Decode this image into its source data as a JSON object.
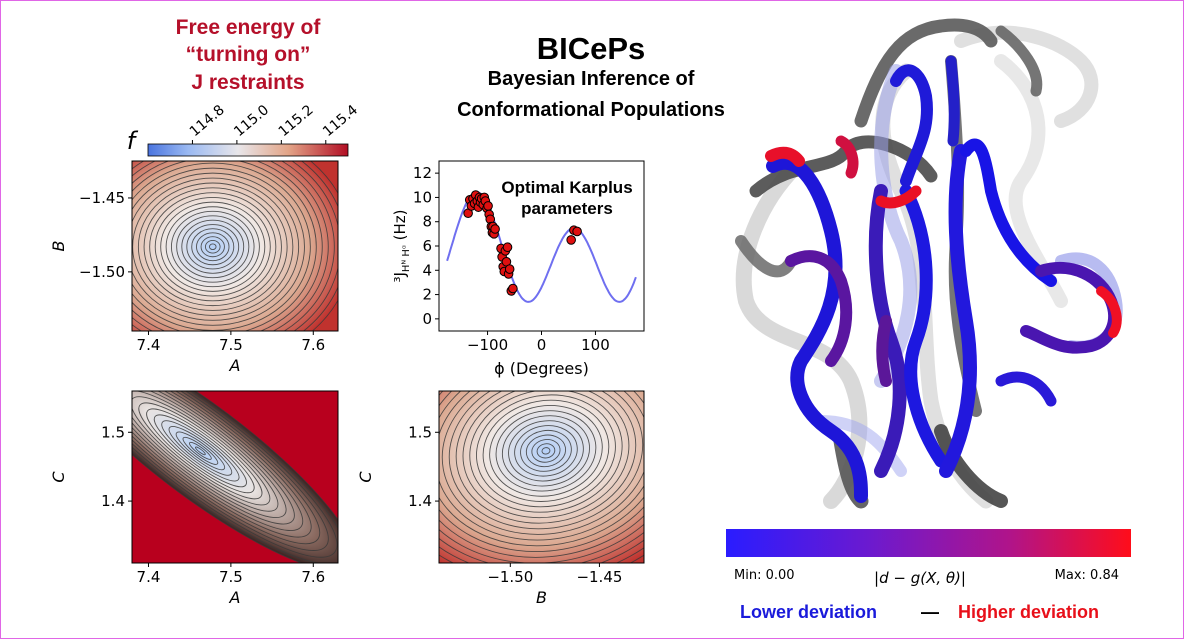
{
  "header": {
    "title": "BICePs",
    "subtitle_line1": "Bayesian Inference of",
    "subtitle_line2": "Conformational Populations"
  },
  "free_energy_label": {
    "line1": "Free energy of",
    "line2": "“turning on”",
    "line3": "J restraints"
  },
  "colorbar_f": {
    "symbol": "f",
    "ticks": [
      "114.8",
      "115.0",
      "115.2",
      "115.4"
    ],
    "tick_values": [
      114.8,
      115.0,
      115.2,
      115.4
    ],
    "range": [
      114.6,
      115.5
    ]
  },
  "karplus_annotation": {
    "line1": "Optimal Karplus",
    "line2": "parameters"
  },
  "deviation_colorbar": {
    "min_label": "Min: 0.00",
    "max_label": "Max: 0.84",
    "formula": "|d − g(X, θ)|",
    "colors": [
      "#2a1cff",
      "#6b1ad0",
      "#b0148a",
      "#ff0d1a"
    ]
  },
  "legend": {
    "lower": "Lower deviation",
    "dash": "—",
    "higher": "Higher deviation",
    "lower_color": "#1a1adb",
    "higher_color": "#e8101a"
  },
  "title_color": "#b5102a",
  "chart_data": [
    {
      "id": "contour-AB",
      "type": "heatmap",
      "xlabel": "A",
      "ylabel": "B",
      "xlim": [
        7.38,
        7.63
      ],
      "ylim": [
        -1.54,
        -1.425
      ],
      "xticks": [
        "7.4",
        "7.5",
        "7.6"
      ],
      "xtick_values": [
        7.4,
        7.5,
        7.6
      ],
      "yticks": [
        "−1.45",
        "−1.50"
      ],
      "ytick_values": [
        -1.45,
        -1.5
      ],
      "minimum": [
        7.478,
        -1.483
      ],
      "colormap": [
        "#b5d0f7",
        "#f3ebe6",
        "#dba890",
        "#c0322e"
      ]
    },
    {
      "id": "contour-AC",
      "type": "heatmap",
      "xlabel": "A",
      "ylabel": "C",
      "xlim": [
        7.38,
        7.63
      ],
      "ylim": [
        1.31,
        1.56
      ],
      "xticks": [
        "7.4",
        "7.5",
        "7.6"
      ],
      "xtick_values": [
        7.4,
        7.5,
        7.6
      ],
      "yticks": [
        "1.5",
        "1.4"
      ],
      "ytick_values": [
        1.5,
        1.4
      ],
      "minimum": [
        7.463,
        1.473
      ],
      "colormap": [
        "#b5d0f7",
        "#e9e4e2",
        "#5a3530",
        "#b8001e"
      ]
    },
    {
      "id": "contour-BC",
      "type": "heatmap",
      "xlabel": "B",
      "ylabel": "C",
      "xlim": [
        -1.54,
        -1.425
      ],
      "ylim": [
        1.31,
        1.56
      ],
      "xticks": [
        "−1.50",
        "−1.45"
      ],
      "xtick_values": [
        -1.5,
        -1.45
      ],
      "yticks": [
        "1.5",
        "1.4"
      ],
      "ytick_values": [
        1.5,
        1.4
      ],
      "minimum": [
        -1.48,
        1.473
      ],
      "colormap": [
        "#b5d0f7",
        "#f3ebe6",
        "#dba890",
        "#c0322e"
      ]
    },
    {
      "id": "karplus",
      "type": "scatter",
      "xlabel": "ϕ (Degrees)",
      "ylabel": "³J",
      "ylabel_sub": "Hᴺ Hᵅ",
      "ylabel_unit": "(Hz)",
      "xlim": [
        -190,
        190
      ],
      "ylim": [
        -1,
        13
      ],
      "xticks": [
        "−100",
        "0",
        "100"
      ],
      "xtick_values": [
        -100,
        0,
        100
      ],
      "yticks": [
        "0",
        "2",
        "4",
        "6",
        "8",
        "10",
        "12"
      ],
      "ytick_values": [
        0,
        2,
        4,
        6,
        8,
        10,
        12
      ],
      "karplus": {
        "A": 7.48,
        "B": -1.48,
        "C": 1.47,
        "offset_deg": -60
      },
      "curve_range": [
        -175,
        175
      ],
      "points": [
        [
          -136,
          8.7
        ],
        [
          -133,
          9.8
        ],
        [
          -130,
          9.3
        ],
        [
          -127,
          9.9
        ],
        [
          -124,
          9.5
        ],
        [
          -122,
          10.2
        ],
        [
          -119,
          9.7
        ],
        [
          -117,
          9.2
        ],
        [
          -115,
          10.0
        ],
        [
          -113,
          9.6
        ],
        [
          -111,
          9.9
        ],
        [
          -108,
          9.4
        ],
        [
          -106,
          10.0
        ],
        [
          -104,
          9.7
        ],
        [
          -101,
          9.1
        ],
        [
          -99,
          9.3
        ],
        [
          -97,
          8.6
        ],
        [
          -95,
          8.2
        ],
        [
          -93,
          7.6
        ],
        [
          -91,
          7.1
        ],
        [
          -90,
          7.6
        ],
        [
          -88,
          7.0
        ],
        [
          -86,
          7.4
        ],
        [
          -75,
          5.8
        ],
        [
          -73,
          5.1
        ],
        [
          -71,
          4.3
        ],
        [
          -69,
          3.9
        ],
        [
          -67,
          5.6
        ],
        [
          -65,
          4.7
        ],
        [
          -63,
          5.9
        ],
        [
          -61,
          3.7
        ],
        [
          -59,
          4.1
        ],
        [
          -56,
          2.3
        ],
        [
          -53,
          2.5
        ],
        [
          55,
          6.5
        ],
        [
          60,
          7.3
        ],
        [
          66,
          7.2
        ]
      ]
    }
  ]
}
